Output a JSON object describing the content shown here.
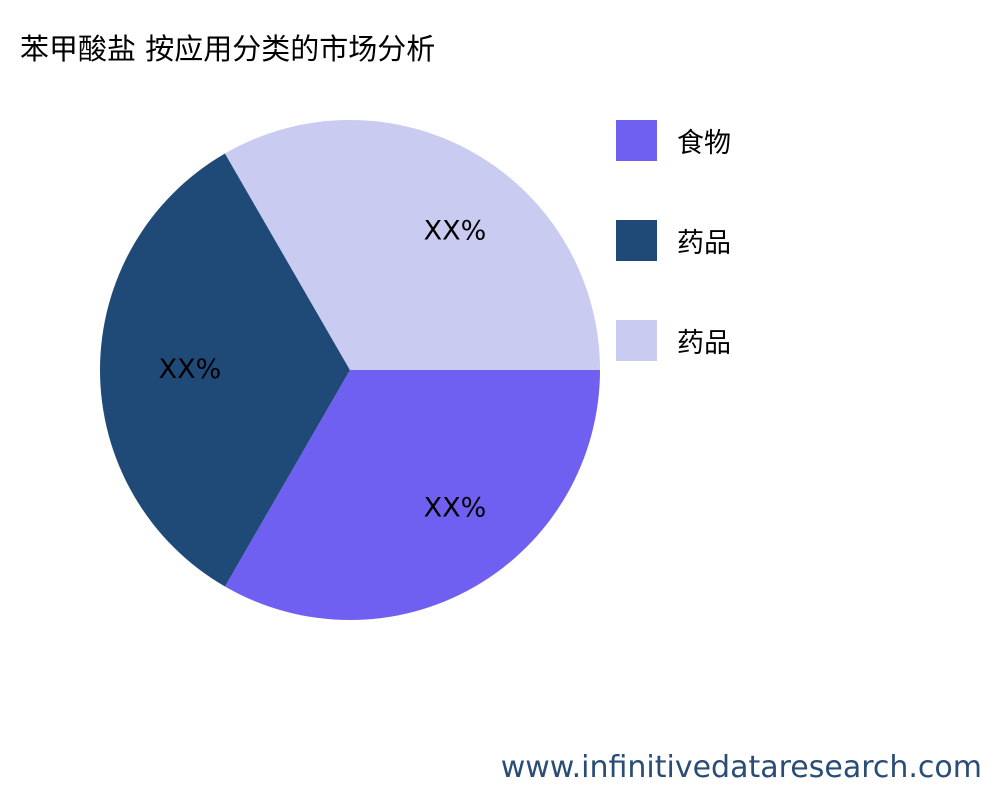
{
  "title": "苯甲酸盐 按应用分类的市场分析",
  "chart_data": {
    "type": "pie",
    "title": "苯甲酸盐 按应用分类的市场分析",
    "categories": [
      "食物",
      "药品",
      "药品"
    ],
    "values": [
      33.3,
      33.3,
      33.3
    ],
    "data_labels": [
      "XX%",
      "XX%",
      "XX%"
    ],
    "colors": [
      "#7060f2",
      "#1f4a78",
      "#c9cbf1"
    ],
    "legend_position": "right"
  },
  "footer": "www.infinitivedataresearch.com"
}
